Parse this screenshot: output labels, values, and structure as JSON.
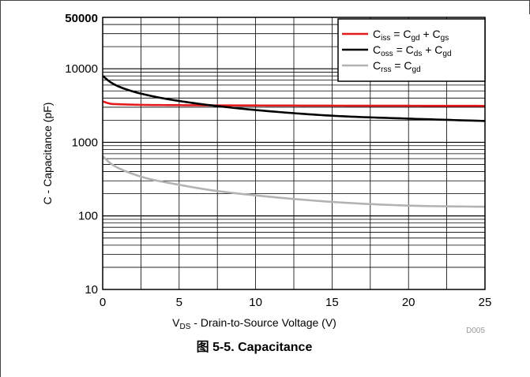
{
  "chart_data": {
    "type": "line",
    "title": "",
    "xlabel": {
      "main": "V",
      "sub": "DS",
      "rest": " - Drain-to-Source Voltage (V)"
    },
    "ylabel": "C - Capacitance (pF)",
    "xlim": [
      0,
      25
    ],
    "ylim": [
      10,
      50000
    ],
    "yscale": "log",
    "grid": true,
    "x_ticks": [
      "0",
      "5",
      "10",
      "15",
      "20",
      "25"
    ],
    "y_ticks": [
      "10",
      "100",
      "1000",
      "10000",
      "50000"
    ],
    "legend_position": "top-right",
    "series": [
      {
        "name": "Ciss = Cgd + Cgs",
        "legend": [
          {
            "t": "C",
            "s": false
          },
          {
            "t": "iss",
            "s": true
          },
          {
            "t": " = C",
            "s": false
          },
          {
            "t": "gd",
            "s": true
          },
          {
            "t": " + C",
            "s": false
          },
          {
            "t": "gs",
            "s": true
          }
        ],
        "color": "#e41a1c",
        "x": [
          0,
          0.5,
          1,
          2,
          3,
          5,
          7,
          10,
          15,
          20,
          25
        ],
        "y": [
          3600,
          3350,
          3300,
          3250,
          3220,
          3200,
          3180,
          3170,
          3150,
          3140,
          3130
        ]
      },
      {
        "name": "Coss = Cds + Cgd",
        "legend": [
          {
            "t": "C",
            "s": false
          },
          {
            "t": "oss",
            "s": true
          },
          {
            "t": " = C",
            "s": false
          },
          {
            "t": "ds",
            "s": true
          },
          {
            "t": " + C",
            "s": false
          },
          {
            "t": "gd",
            "s": true
          }
        ],
        "color": "#000000",
        "x": [
          0,
          0.5,
          1,
          2,
          3,
          4,
          5,
          7,
          10,
          15,
          20,
          25
        ],
        "y": [
          8000,
          6600,
          5800,
          4900,
          4350,
          3950,
          3650,
          3200,
          2750,
          2300,
          2100,
          1950
        ]
      },
      {
        "name": "Crss = Cgd",
        "legend": [
          {
            "t": "C",
            "s": false
          },
          {
            "t": "rss",
            "s": true
          },
          {
            "t": " = C",
            "s": false
          },
          {
            "t": "gd",
            "s": true
          }
        ],
        "color": "#b3b3b3",
        "x": [
          0,
          0.5,
          1,
          2,
          3,
          5,
          7,
          10,
          15,
          20,
          25
        ],
        "y": [
          650,
          520,
          450,
          370,
          320,
          265,
          225,
          190,
          155,
          138,
          133
        ]
      }
    ]
  },
  "figure_code": "D005",
  "caption": "图 5-5. Capacitance"
}
